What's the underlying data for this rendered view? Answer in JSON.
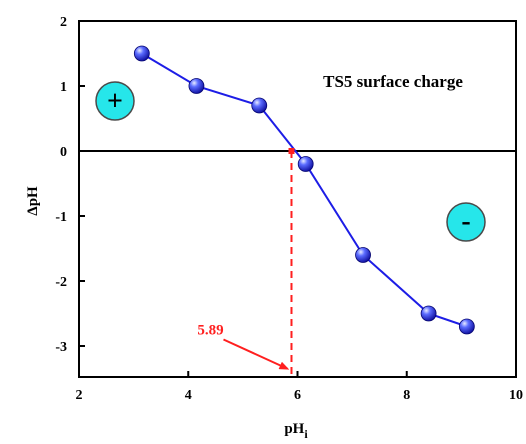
{
  "chart_data": {
    "type": "scatter",
    "title": "TS5 surface charge",
    "xlabel_base": "pH",
    "xlabel_sub": "i",
    "ylabel": "ΔpH",
    "xlim": [
      2,
      10
    ],
    "ylim": [
      -3.5,
      2
    ],
    "x_ticks": [
      2,
      4,
      6,
      8,
      10
    ],
    "y_ticks": [
      2,
      1,
      0,
      -1,
      -2,
      -3
    ],
    "grid": false,
    "series": [
      {
        "points": [
          {
            "x": 3.15,
            "y": 1.5
          },
          {
            "x": 4.15,
            "y": 1.0
          },
          {
            "x": 5.3,
            "y": 0.7
          },
          {
            "x": 6.15,
            "y": -0.2
          },
          {
            "x": 7.2,
            "y": -1.6
          },
          {
            "x": 8.4,
            "y": -2.5
          },
          {
            "x": 9.1,
            "y": -2.7
          }
        ]
      }
    ],
    "zero_crossing": {
      "x": 5.89,
      "label": "5.89"
    },
    "positive_badge": "+",
    "negative_badge": "-",
    "colors": {
      "series_line": "#1d1de6",
      "marker": "#1a1ae0",
      "annotation": "#ff1f1f",
      "badge_fill": "#26e6ea",
      "zero_line": "#000000"
    }
  }
}
